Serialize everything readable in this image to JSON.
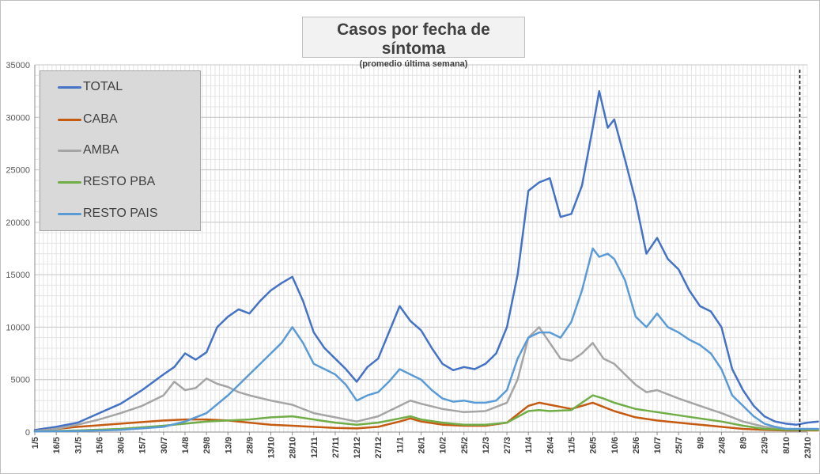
{
  "chart_data": {
    "type": "line",
    "title": "Casos por fecha de síntoma",
    "subtitle": "(promedio última semana)",
    "xlabel": "",
    "ylabel": "",
    "ylim": [
      0,
      35000
    ],
    "yticks": [
      0,
      5000,
      10000,
      15000,
      20000,
      25000,
      30000,
      35000
    ],
    "x_tick_labels": [
      "1/5",
      "16/5",
      "31/5",
      "15/6",
      "30/6",
      "15/7",
      "30/7",
      "14/8",
      "29/8",
      "13/9",
      "28/9",
      "13/10",
      "28/10",
      "12/11",
      "27/11",
      "12/12",
      "27/12",
      "11/1",
      "26/1",
      "10/2",
      "25/2",
      "12/3",
      "27/3",
      "11/4",
      "26/4",
      "11/5",
      "26/5",
      "10/6",
      "25/6",
      "10/7",
      "25/7",
      "9/8",
      "24/8",
      "8/9",
      "23/9",
      "8/10",
      "23/10"
    ],
    "grid": true,
    "legend_position": "top-left",
    "vertical_marker_tick_index": 35.65,
    "series": [
      {
        "name": "TOTAL",
        "color": "#4472c4",
        "points": [
          [
            0,
            200
          ],
          [
            1,
            500
          ],
          [
            2,
            900
          ],
          [
            3,
            1800
          ],
          [
            4,
            2700
          ],
          [
            5,
            4000
          ],
          [
            6,
            5500
          ],
          [
            6.5,
            6200
          ],
          [
            7,
            7500
          ],
          [
            7.5,
            6900
          ],
          [
            8,
            7600
          ],
          [
            8.5,
            10000
          ],
          [
            9,
            11000
          ],
          [
            9.5,
            11700
          ],
          [
            10,
            11300
          ],
          [
            10.5,
            12500
          ],
          [
            11,
            13500
          ],
          [
            11.5,
            14200
          ],
          [
            12,
            14800
          ],
          [
            12.5,
            12500
          ],
          [
            13,
            9500
          ],
          [
            13.5,
            8000
          ],
          [
            14,
            7000
          ],
          [
            14.5,
            6000
          ],
          [
            15,
            4800
          ],
          [
            15.5,
            6200
          ],
          [
            16,
            7000
          ],
          [
            16.5,
            9500
          ],
          [
            17,
            12000
          ],
          [
            17.5,
            10600
          ],
          [
            18,
            9700
          ],
          [
            18.5,
            8000
          ],
          [
            19,
            6500
          ],
          [
            19.5,
            5900
          ],
          [
            20,
            6200
          ],
          [
            20.5,
            6000
          ],
          [
            21,
            6500
          ],
          [
            21.5,
            7500
          ],
          [
            22,
            10000
          ],
          [
            22.5,
            15000
          ],
          [
            23,
            23000
          ],
          [
            23.5,
            23800
          ],
          [
            24,
            24200
          ],
          [
            24.5,
            20500
          ],
          [
            25,
            20800
          ],
          [
            25.5,
            23500
          ],
          [
            26,
            29000
          ],
          [
            26.3,
            32500
          ],
          [
            26.7,
            29000
          ],
          [
            27,
            29800
          ],
          [
            27.5,
            26000
          ],
          [
            28,
            22000
          ],
          [
            28.5,
            17000
          ],
          [
            29,
            18500
          ],
          [
            29.5,
            16500
          ],
          [
            30,
            15500
          ],
          [
            30.5,
            13500
          ],
          [
            31,
            12000
          ],
          [
            31.5,
            11500
          ],
          [
            32,
            10000
          ],
          [
            32.5,
            6000
          ],
          [
            33,
            4000
          ],
          [
            33.5,
            2500
          ],
          [
            34,
            1500
          ],
          [
            34.5,
            1000
          ],
          [
            35,
            800
          ],
          [
            35.5,
            700
          ],
          [
            36,
            900
          ],
          [
            36.5,
            1000
          ]
        ]
      },
      {
        "name": "CABA",
        "color": "#c55a11",
        "points": [
          [
            0,
            100
          ],
          [
            2,
            500
          ],
          [
            4,
            800
          ],
          [
            6,
            1100
          ],
          [
            7,
            1200
          ],
          [
            8,
            1200
          ],
          [
            9,
            1100
          ],
          [
            10,
            900
          ],
          [
            11,
            700
          ],
          [
            12,
            600
          ],
          [
            13,
            500
          ],
          [
            14,
            400
          ],
          [
            15,
            350
          ],
          [
            16,
            500
          ],
          [
            17,
            1000
          ],
          [
            17.5,
            1300
          ],
          [
            18,
            1000
          ],
          [
            19,
            700
          ],
          [
            20,
            600
          ],
          [
            21,
            600
          ],
          [
            22,
            900
          ],
          [
            23,
            2500
          ],
          [
            23.5,
            2800
          ],
          [
            24,
            2600
          ],
          [
            25,
            2200
          ],
          [
            26,
            2800
          ],
          [
            27,
            2000
          ],
          [
            28,
            1400
          ],
          [
            29,
            1100
          ],
          [
            30,
            900
          ],
          [
            31,
            700
          ],
          [
            32,
            500
          ],
          [
            33,
            300
          ],
          [
            34,
            200
          ],
          [
            35,
            150
          ],
          [
            36.5,
            150
          ]
        ]
      },
      {
        "name": "AMBA",
        "color": "#a5a5a5",
        "points": [
          [
            0,
            100
          ],
          [
            1,
            300
          ],
          [
            2,
            700
          ],
          [
            3,
            1200
          ],
          [
            4,
            1800
          ],
          [
            5,
            2500
          ],
          [
            6,
            3500
          ],
          [
            6.5,
            4800
          ],
          [
            7,
            4000
          ],
          [
            7.5,
            4200
          ],
          [
            8,
            5100
          ],
          [
            8.5,
            4600
          ],
          [
            9,
            4300
          ],
          [
            9.5,
            3800
          ],
          [
            10,
            3500
          ],
          [
            11,
            3000
          ],
          [
            12,
            2600
          ],
          [
            13,
            1800
          ],
          [
            14,
            1400
          ],
          [
            15,
            1000
          ],
          [
            16,
            1500
          ],
          [
            17,
            2500
          ],
          [
            17.5,
            3000
          ],
          [
            18,
            2700
          ],
          [
            19,
            2200
          ],
          [
            20,
            1900
          ],
          [
            21,
            2000
          ],
          [
            22,
            2800
          ],
          [
            22.5,
            5000
          ],
          [
            23,
            9000
          ],
          [
            23.5,
            10000
          ],
          [
            24,
            8500
          ],
          [
            24.5,
            7000
          ],
          [
            25,
            6800
          ],
          [
            25.5,
            7500
          ],
          [
            26,
            8500
          ],
          [
            26.5,
            7000
          ],
          [
            27,
            6500
          ],
          [
            27.5,
            5500
          ],
          [
            28,
            4500
          ],
          [
            28.5,
            3800
          ],
          [
            29,
            4000
          ],
          [
            30,
            3200
          ],
          [
            31,
            2500
          ],
          [
            32,
            1800
          ],
          [
            33,
            1000
          ],
          [
            34,
            500
          ],
          [
            35,
            250
          ],
          [
            36.5,
            200
          ]
        ]
      },
      {
        "name": "RESTO PBA",
        "color": "#70ad47",
        "points": [
          [
            0,
            50
          ],
          [
            2,
            150
          ],
          [
            4,
            300
          ],
          [
            6,
            600
          ],
          [
            7,
            800
          ],
          [
            8,
            1000
          ],
          [
            9,
            1100
          ],
          [
            10,
            1200
          ],
          [
            11,
            1400
          ],
          [
            12,
            1500
          ],
          [
            13,
            1200
          ],
          [
            14,
            900
          ],
          [
            15,
            700
          ],
          [
            16,
            900
          ],
          [
            17,
            1300
          ],
          [
            17.5,
            1500
          ],
          [
            18,
            1200
          ],
          [
            19,
            900
          ],
          [
            20,
            700
          ],
          [
            21,
            700
          ],
          [
            22,
            900
          ],
          [
            23,
            2000
          ],
          [
            23.5,
            2100
          ],
          [
            24,
            2000
          ],
          [
            25,
            2100
          ],
          [
            25.5,
            2800
          ],
          [
            26,
            3500
          ],
          [
            26.5,
            3200
          ],
          [
            27,
            2800
          ],
          [
            28,
            2200
          ],
          [
            29,
            1900
          ],
          [
            30,
            1600
          ],
          [
            31,
            1300
          ],
          [
            32,
            1000
          ],
          [
            33,
            600
          ],
          [
            34,
            300
          ],
          [
            35,
            200
          ],
          [
            36.5,
            200
          ]
        ]
      },
      {
        "name": "RESTO PAIS",
        "color": "#5b9bd5",
        "points": [
          [
            0,
            50
          ],
          [
            2,
            100
          ],
          [
            4,
            200
          ],
          [
            6,
            500
          ],
          [
            7,
            1000
          ],
          [
            8,
            1800
          ],
          [
            9,
            3500
          ],
          [
            10,
            5500
          ],
          [
            11,
            7500
          ],
          [
            11.5,
            8500
          ],
          [
            12,
            10000
          ],
          [
            12.5,
            8500
          ],
          [
            13,
            6500
          ],
          [
            14,
            5500
          ],
          [
            14.5,
            4500
          ],
          [
            15,
            3000
          ],
          [
            15.5,
            3500
          ],
          [
            16,
            3800
          ],
          [
            16.5,
            4800
          ],
          [
            17,
            6000
          ],
          [
            17.5,
            5500
          ],
          [
            18,
            5000
          ],
          [
            18.5,
            4000
          ],
          [
            19,
            3200
          ],
          [
            19.5,
            2900
          ],
          [
            20,
            3000
          ],
          [
            20.5,
            2800
          ],
          [
            21,
            2800
          ],
          [
            21.5,
            3000
          ],
          [
            22,
            4000
          ],
          [
            22.5,
            7000
          ],
          [
            23,
            9000
          ],
          [
            23.5,
            9500
          ],
          [
            24,
            9500
          ],
          [
            24.5,
            9000
          ],
          [
            25,
            10500
          ],
          [
            25.5,
            13500
          ],
          [
            26,
            17500
          ],
          [
            26.3,
            16700
          ],
          [
            26.7,
            17000
          ],
          [
            27,
            16500
          ],
          [
            27.5,
            14500
          ],
          [
            28,
            11000
          ],
          [
            28.5,
            10000
          ],
          [
            29,
            11300
          ],
          [
            29.5,
            10000
          ],
          [
            30,
            9500
          ],
          [
            30.5,
            8800
          ],
          [
            31,
            8300
          ],
          [
            31.5,
            7500
          ],
          [
            32,
            6000
          ],
          [
            32.5,
            3500
          ],
          [
            33,
            2500
          ],
          [
            33.5,
            1500
          ],
          [
            34,
            800
          ],
          [
            34.5,
            500
          ],
          [
            35,
            300
          ],
          [
            36.5,
            300
          ]
        ]
      }
    ]
  }
}
